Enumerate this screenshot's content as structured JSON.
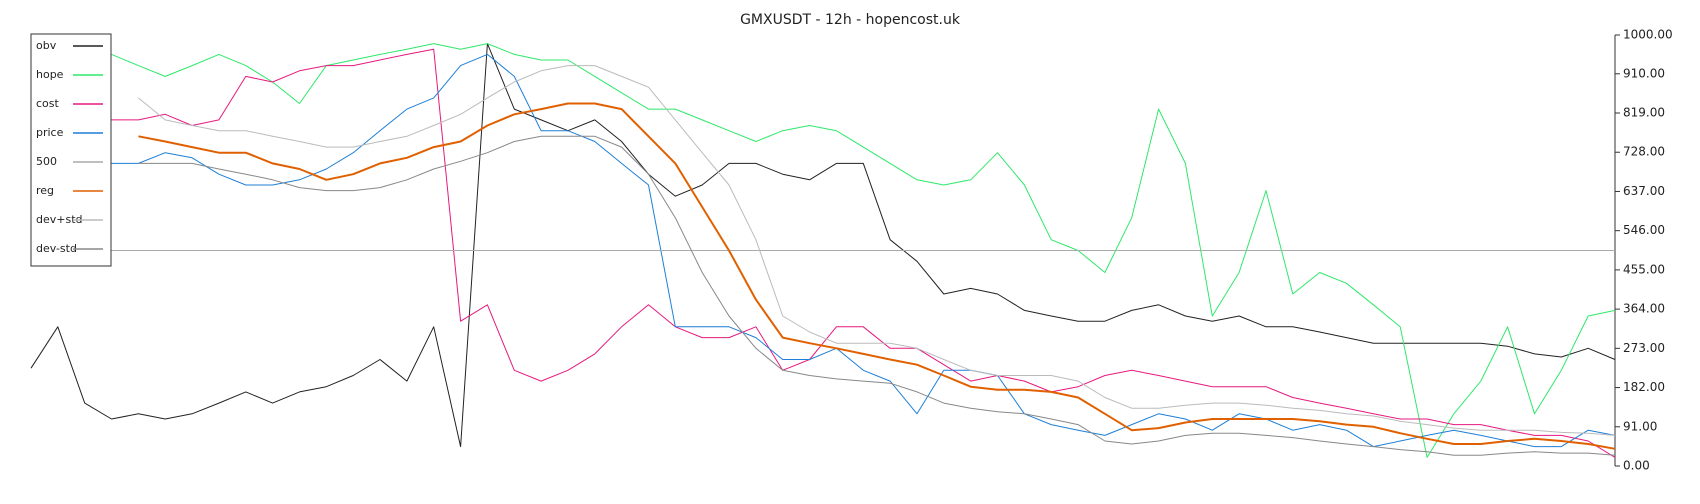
{
  "chart_data": {
    "type": "line",
    "title": "GMXUSDT - 12h - hopencost.uk",
    "ylim": [
      0,
      1000
    ],
    "yticks": [
      {
        "value": 0,
        "label": "0.00"
      },
      {
        "value": 91,
        "label": "91.00"
      },
      {
        "value": 182,
        "label": "182.00"
      },
      {
        "value": 273,
        "label": "273.00"
      },
      {
        "value": 364,
        "label": "364.00"
      },
      {
        "value": 455,
        "label": "455.00"
      },
      {
        "value": 546,
        "label": "546.00"
      },
      {
        "value": 637,
        "label": "637.00"
      },
      {
        "value": 728,
        "label": "728.00"
      },
      {
        "value": 819,
        "label": "819.00"
      },
      {
        "value": 910,
        "label": "910.00"
      },
      {
        "value": 1000,
        "label": "1000.00"
      }
    ],
    "legend": "upper left",
    "series": [
      {
        "name": "obv",
        "color": "#222222",
        "values": [
          227,
          323,
          146,
          109,
          121,
          109,
          121,
          146,
          172,
          146,
          172,
          184,
          210,
          247,
          197,
          323,
          45,
          980,
          828,
          803,
          778,
          803,
          753,
          677,
          626,
          652,
          702,
          702,
          677,
          664,
          702,
          702,
          525,
          475,
          399,
          412,
          399,
          361,
          348,
          336,
          336,
          361,
          374,
          348,
          336,
          348,
          323,
          323,
          311,
          298,
          285,
          285,
          285,
          285,
          285,
          278,
          260,
          253,
          273,
          247
        ]
      },
      {
        "name": "hope",
        "color": "#2ee86a",
        "values": [
          null,
          null,
          null,
          955,
          929,
          904,
          929,
          955,
          929,
          891,
          841,
          929,
          942,
          955,
          967,
          980,
          967,
          980,
          955,
          942,
          942,
          904,
          866,
          828,
          828,
          803,
          778,
          753,
          778,
          790,
          778,
          740,
          702,
          664,
          652,
          664,
          727,
          652,
          525,
          500,
          449,
          576,
          828,
          702,
          348,
          449,
          639,
          399,
          449,
          424,
          374,
          323,
          20,
          121,
          197,
          323,
          121,
          222,
          348,
          361
        ]
      },
      {
        "name": "cost",
        "color": "#e6197e",
        "values": [
          null,
          null,
          null,
          803,
          803,
          816,
          790,
          803,
          904,
          891,
          917,
          929,
          929,
          942,
          955,
          967,
          336,
          374,
          222,
          197,
          222,
          260,
          323,
          374,
          323,
          298,
          298,
          323,
          222,
          247,
          323,
          323,
          273,
          273,
          235,
          197,
          210,
          197,
          172,
          184,
          210,
          222,
          210,
          197,
          184,
          184,
          184,
          159,
          146,
          134,
          121,
          109,
          109,
          96,
          96,
          83,
          71,
          71,
          58,
          20
        ]
      },
      {
        "name": "price",
        "color": "#1e7fd6",
        "values": [
          null,
          null,
          null,
          702,
          702,
          727,
          715,
          677,
          652,
          652,
          664,
          689,
          727,
          778,
          828,
          854,
          929,
          955,
          904,
          778,
          778,
          753,
          702,
          652,
          323,
          323,
          323,
          298,
          247,
          247,
          273,
          222,
          197,
          121,
          222,
          222,
          210,
          121,
          96,
          83,
          71,
          96,
          121,
          109,
          83,
          121,
          109,
          83,
          96,
          83,
          45,
          58,
          71,
          83,
          71,
          58,
          45,
          45,
          83,
          71
        ]
      },
      {
        "name": "500",
        "color": "#aaaaaa",
        "values": [
          500,
          500,
          500,
          500,
          500,
          500,
          500,
          500,
          500,
          500,
          500,
          500,
          500,
          500,
          500,
          500,
          500,
          500,
          500,
          500,
          500,
          500,
          500,
          500,
          500,
          500,
          500,
          500,
          500,
          500,
          500,
          500,
          500,
          500,
          500,
          500,
          500,
          500,
          500,
          500,
          500,
          500,
          500,
          500,
          500,
          500,
          500,
          500,
          500,
          500,
          500,
          500,
          500,
          500,
          500,
          500,
          500,
          500,
          500,
          500
        ]
      },
      {
        "name": "reg",
        "color": "#e06000",
        "values": [
          null,
          null,
          null,
          null,
          765,
          753,
          740,
          727,
          727,
          702,
          689,
          664,
          677,
          702,
          715,
          740,
          753,
          790,
          816,
          828,
          841,
          841,
          828,
          765,
          702,
          601,
          500,
          386,
          298,
          285,
          273,
          260,
          247,
          235,
          210,
          184,
          177,
          177,
          172,
          159,
          121,
          83,
          88,
          101,
          109,
          109,
          109,
          109,
          104,
          96,
          91,
          76,
          63,
          51,
          51,
          58,
          63,
          58,
          51,
          40
        ]
      },
      {
        "name": "dev+std",
        "color": "#bbbbbb",
        "values": [
          null,
          null,
          null,
          null,
          854,
          803,
          790,
          778,
          778,
          765,
          753,
          740,
          740,
          753,
          765,
          790,
          816,
          854,
          891,
          917,
          929,
          929,
          904,
          879,
          803,
          727,
          652,
          525,
          348,
          311,
          285,
          285,
          285,
          273,
          247,
          222,
          210,
          210,
          210,
          197,
          159,
          134,
          134,
          141,
          146,
          146,
          141,
          134,
          129,
          121,
          116,
          104,
          96,
          88,
          83,
          83,
          83,
          78,
          76,
          71
        ]
      },
      {
        "name": "dev-std",
        "color": "#888888",
        "values": [
          null,
          null,
          null,
          null,
          702,
          702,
          702,
          689,
          677,
          664,
          646,
          639,
          639,
          646,
          664,
          689,
          707,
          727,
          753,
          765,
          765,
          765,
          740,
          677,
          576,
          449,
          348,
          273,
          222,
          210,
          202,
          197,
          192,
          172,
          146,
          134,
          126,
          121,
          109,
          96,
          58,
          51,
          58,
          71,
          76,
          76,
          71,
          66,
          58,
          51,
          45,
          38,
          33,
          25,
          25,
          30,
          33,
          30,
          30,
          25
        ]
      }
    ]
  }
}
